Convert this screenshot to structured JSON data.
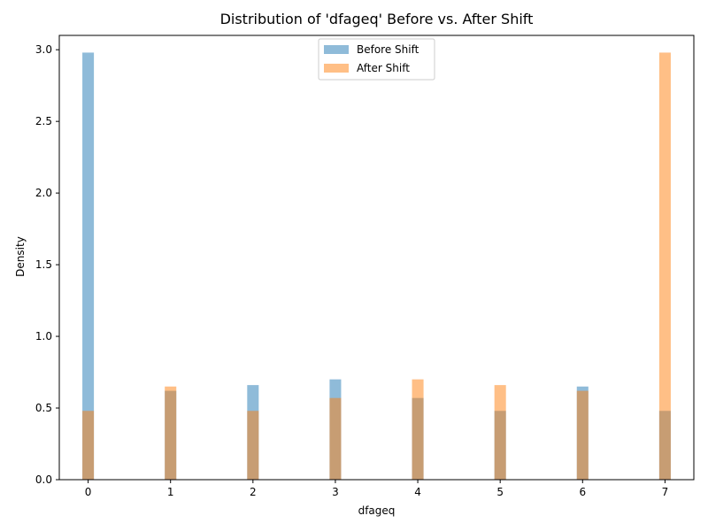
{
  "chart_data": {
    "type": "bar",
    "title": "Distribution of 'dfageq' Before vs. After Shift",
    "xlabel": "dfageq",
    "ylabel": "Density",
    "x": [
      0,
      1,
      2,
      3,
      4,
      5,
      6,
      7
    ],
    "xlim": [
      -0.35,
      7.35
    ],
    "ylim": [
      0,
      3.1
    ],
    "xticks": [
      0,
      1,
      2,
      3,
      4,
      5,
      6,
      7
    ],
    "yticks": [
      0.0,
      0.5,
      1.0,
      1.5,
      2.0,
      2.5,
      3.0
    ],
    "ytick_labels": [
      "0.0",
      "0.5",
      "1.0",
      "1.5",
      "2.0",
      "2.5",
      "3.0"
    ],
    "bar_width": 0.14,
    "grid": false,
    "legend_position": "top-center",
    "series": [
      {
        "name": "Before Shift",
        "color": "#1f77b4",
        "opacity": 0.5,
        "values": [
          2.98,
          0.62,
          0.66,
          0.7,
          0.57,
          0.48,
          0.65,
          0.48
        ]
      },
      {
        "name": "After Shift",
        "color": "#ff7f0e",
        "opacity": 0.5,
        "values": [
          0.48,
          0.65,
          0.48,
          0.57,
          0.7,
          0.66,
          0.62,
          2.98
        ]
      }
    ]
  }
}
